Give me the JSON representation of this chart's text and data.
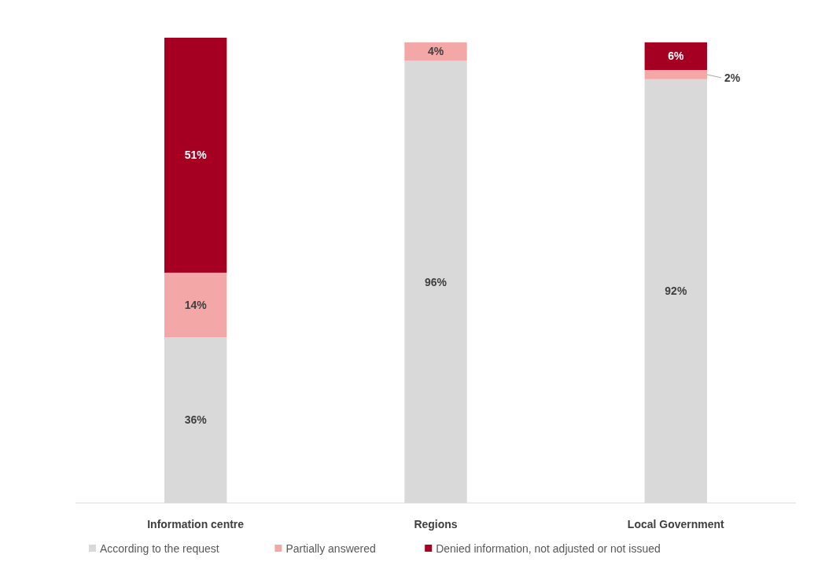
{
  "chart_data": {
    "type": "bar",
    "stacked": true,
    "categories": [
      "Information centre",
      "Regions",
      "Local Government"
    ],
    "ylim": [
      0,
      101
    ],
    "legend": "bottom",
    "series": [
      {
        "name": "According to the request",
        "color": "#d9d9d9",
        "values": [
          36,
          96,
          92
        ],
        "value_labels": [
          "36%",
          "96%",
          "92%"
        ]
      },
      {
        "name": "Partially answered",
        "color": "#f4a7a7",
        "values": [
          14,
          4,
          2
        ],
        "value_labels": [
          "14%",
          "4%",
          "2%"
        ]
      },
      {
        "name": "Denied information, not adjusted or not issued",
        "color": "#a50021",
        "values": [
          51,
          null,
          6
        ],
        "value_labels": [
          "51%",
          null,
          "6%"
        ]
      }
    ]
  }
}
